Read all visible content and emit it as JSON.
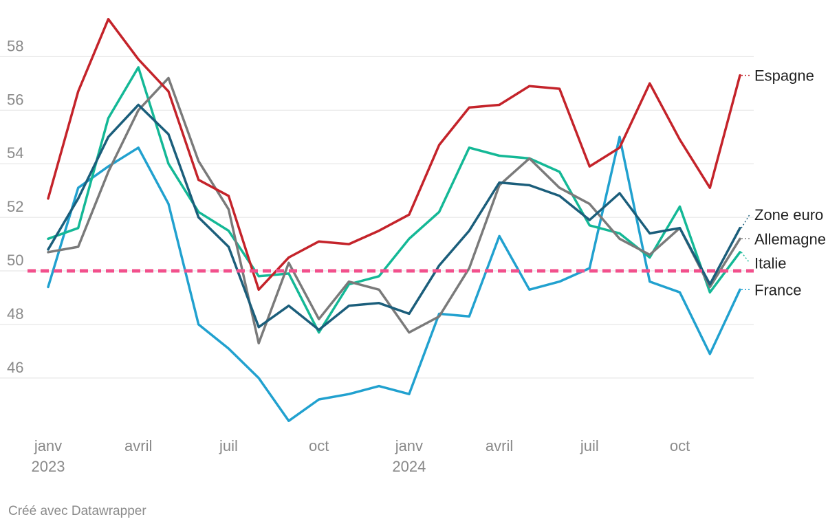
{
  "chart_data": {
    "type": "line",
    "x": [
      "2023-01",
      "2023-02",
      "2023-03",
      "2023-04",
      "2023-05",
      "2023-06",
      "2023-07",
      "2023-08",
      "2023-09",
      "2023-10",
      "2023-11",
      "2023-12",
      "2024-01",
      "2024-02",
      "2024-03",
      "2024-04",
      "2024-05",
      "2024-06",
      "2024-07",
      "2024-08",
      "2024-09",
      "2024-10",
      "2024-11",
      "2024-12"
    ],
    "x_ticks": [
      {
        "x": "2023-01",
        "label": "janv",
        "year": "2023"
      },
      {
        "x": "2023-04",
        "label": "avril",
        "year": ""
      },
      {
        "x": "2023-07",
        "label": "juil",
        "year": ""
      },
      {
        "x": "2023-10",
        "label": "oct",
        "year": ""
      },
      {
        "x": "2024-01",
        "label": "janv",
        "year": "2024"
      },
      {
        "x": "2024-04",
        "label": "avril",
        "year": ""
      },
      {
        "x": "2024-07",
        "label": "juil",
        "year": ""
      },
      {
        "x": "2024-10",
        "label": "oct",
        "year": ""
      }
    ],
    "y_ticks": [
      46,
      48,
      50,
      52,
      54,
      56,
      58
    ],
    "ylim": [
      44.2,
      59.6
    ],
    "reference_line": {
      "value": 50,
      "color": "#f2508c",
      "style": "dashed"
    },
    "grid": true,
    "legend": "direct labels at line ends (right)",
    "series": [
      {
        "name": "Espagne",
        "color": "#c4232a",
        "values": [
          52.7,
          56.7,
          59.4,
          57.9,
          56.7,
          53.4,
          52.8,
          49.3,
          50.5,
          51.1,
          51.0,
          51.5,
          52.1,
          54.7,
          56.1,
          56.2,
          56.9,
          56.8,
          53.9,
          54.6,
          57.0,
          54.9,
          53.1,
          57.3
        ]
      },
      {
        "name": "Zone euro",
        "color": "#1b5e7b",
        "values": [
          50.8,
          52.7,
          55.0,
          56.2,
          55.1,
          52.0,
          50.9,
          47.9,
          48.7,
          47.8,
          48.7,
          48.8,
          48.4,
          50.2,
          51.5,
          53.3,
          53.2,
          52.8,
          51.9,
          52.9,
          51.4,
          51.6,
          49.5,
          51.6
        ]
      },
      {
        "name": "Allemagne",
        "color": "#7a7a7a",
        "values": [
          50.7,
          50.9,
          53.7,
          56.0,
          57.2,
          54.1,
          52.3,
          47.3,
          50.3,
          48.2,
          49.6,
          49.3,
          47.7,
          48.3,
          50.1,
          53.2,
          54.2,
          53.1,
          52.5,
          51.2,
          50.6,
          51.6,
          49.4,
          51.2
        ]
      },
      {
        "name": "Italie",
        "color": "#14b896",
        "values": [
          51.2,
          51.6,
          55.7,
          57.6,
          54.0,
          52.2,
          51.5,
          49.8,
          49.9,
          47.7,
          49.5,
          49.8,
          51.2,
          52.2,
          54.6,
          54.3,
          54.2,
          53.7,
          51.7,
          51.4,
          50.5,
          52.4,
          49.2,
          50.7
        ]
      },
      {
        "name": "France",
        "color": "#21a1cf",
        "values": [
          49.4,
          53.1,
          53.9,
          54.6,
          52.5,
          48.0,
          47.1,
          46.0,
          44.4,
          45.2,
          45.4,
          45.7,
          45.4,
          48.4,
          48.3,
          51.3,
          49.3,
          49.6,
          50.1,
          55.0,
          49.6,
          49.2,
          46.9,
          49.3
        ]
      }
    ],
    "label_positions": {
      "Espagne": 57.3,
      "Zone euro": 52.1,
      "Allemagne": 51.2,
      "Italie": 50.3,
      "France": 49.3
    }
  },
  "footer": {
    "credit": "Créé avec Datawrapper"
  }
}
